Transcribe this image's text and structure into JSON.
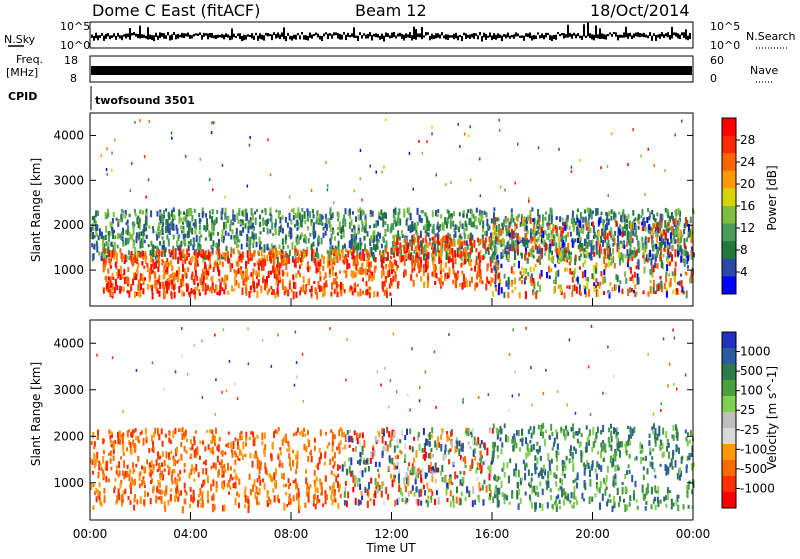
{
  "header": {
    "station": "Dome C East (fitACF)",
    "beam": "Beam 12",
    "date": "18/Oct/2014"
  },
  "strip_panels": {
    "nsky": {
      "label": "N.Sky",
      "left_ticks": [
        "10^5",
        "10^0"
      ],
      "right_label": "N.Search",
      "right_ticks": [
        "10^5",
        "10^0"
      ]
    },
    "freq": {
      "label_line1": "Freq.",
      "label_line2": "[MHz]",
      "left_ticks": [
        "18",
        "8"
      ],
      "right_label": "Nave",
      "right_ticks": [
        "60",
        "0"
      ]
    },
    "cpid": {
      "label": "CPID",
      "program": "twofsound 3501"
    }
  },
  "colors": {
    "power_scale": [
      "#0000ff",
      "#2b4aa8",
      "#1f7a3a",
      "#4a9a5a",
      "#7fbf3f",
      "#d4d400",
      "#ff9900",
      "#ff6600",
      "#ff2a00",
      "#ff0000"
    ],
    "velocity_scale": [
      "#2030c0",
      "#2a5aa0",
      "#2f7a4a",
      "#4aa040",
      "#7fd04f",
      "#bfbfbf",
      "#d9d9d9",
      "#ff9900",
      "#ff6a00",
      "#ff3000",
      "#ff0000"
    ]
  },
  "chart_data": [
    {
      "type": "heatmap",
      "panel": "power",
      "ylabel": "Slant Range [km]",
      "yticks": [
        "1000",
        "2000",
        "3000",
        "4000"
      ],
      "ylim": [
        200,
        4500
      ],
      "xlim": [
        "00:00",
        "24:00"
      ],
      "colorbar_label": "Power [dB]",
      "colorbar_ticks": [
        "4",
        "8",
        "12",
        "16",
        "20",
        "24",
        "28"
      ],
      "colorbar_range": [
        0,
        30
      ],
      "scatter_bands": [
        {
          "time_h": [
            0.0,
            24.0
          ],
          "range_km": [
            1300,
            2400
          ],
          "level": "mid",
          "note_shown": "blue-green echoes"
        },
        {
          "time_h": [
            0.5,
            12.0
          ],
          "range_km": [
            500,
            1500
          ],
          "level": "high"
        },
        {
          "time_h": [
            12.0,
            16.0
          ],
          "range_km": [
            700,
            1800
          ],
          "level": "high"
        },
        {
          "time_h": [
            16.0,
            24.0
          ],
          "range_km": [
            500,
            2200
          ],
          "level": "mixed"
        }
      ]
    },
    {
      "type": "heatmap",
      "panel": "velocity",
      "ylabel": "Slant Range [km]",
      "yticks": [
        "1000",
        "2000",
        "3000",
        "4000"
      ],
      "ylim": [
        200,
        4500
      ],
      "xlim": [
        "00:00",
        "24:00"
      ],
      "xticks": [
        "00:00",
        "04:00",
        "08:00",
        "12:00",
        "16:00",
        "20:00",
        "00:00"
      ],
      "xlabel": "Time UT",
      "colorbar_label": "Velocity [m s^-1]",
      "colorbar_ticks": [
        "1000",
        "500",
        "100",
        "25",
        "-25",
        "-100",
        "-500",
        "-1000"
      ],
      "scatter_bands": [
        {
          "time_h": [
            0.0,
            10.0
          ],
          "range_km": [
            500,
            2200
          ],
          "level": "negative"
        },
        {
          "time_h": [
            10.0,
            16.0
          ],
          "range_km": [
            600,
            2200
          ],
          "level": "mixed"
        },
        {
          "time_h": [
            16.0,
            24.0
          ],
          "range_km": [
            500,
            2300
          ],
          "level": "positive"
        }
      ]
    }
  ]
}
